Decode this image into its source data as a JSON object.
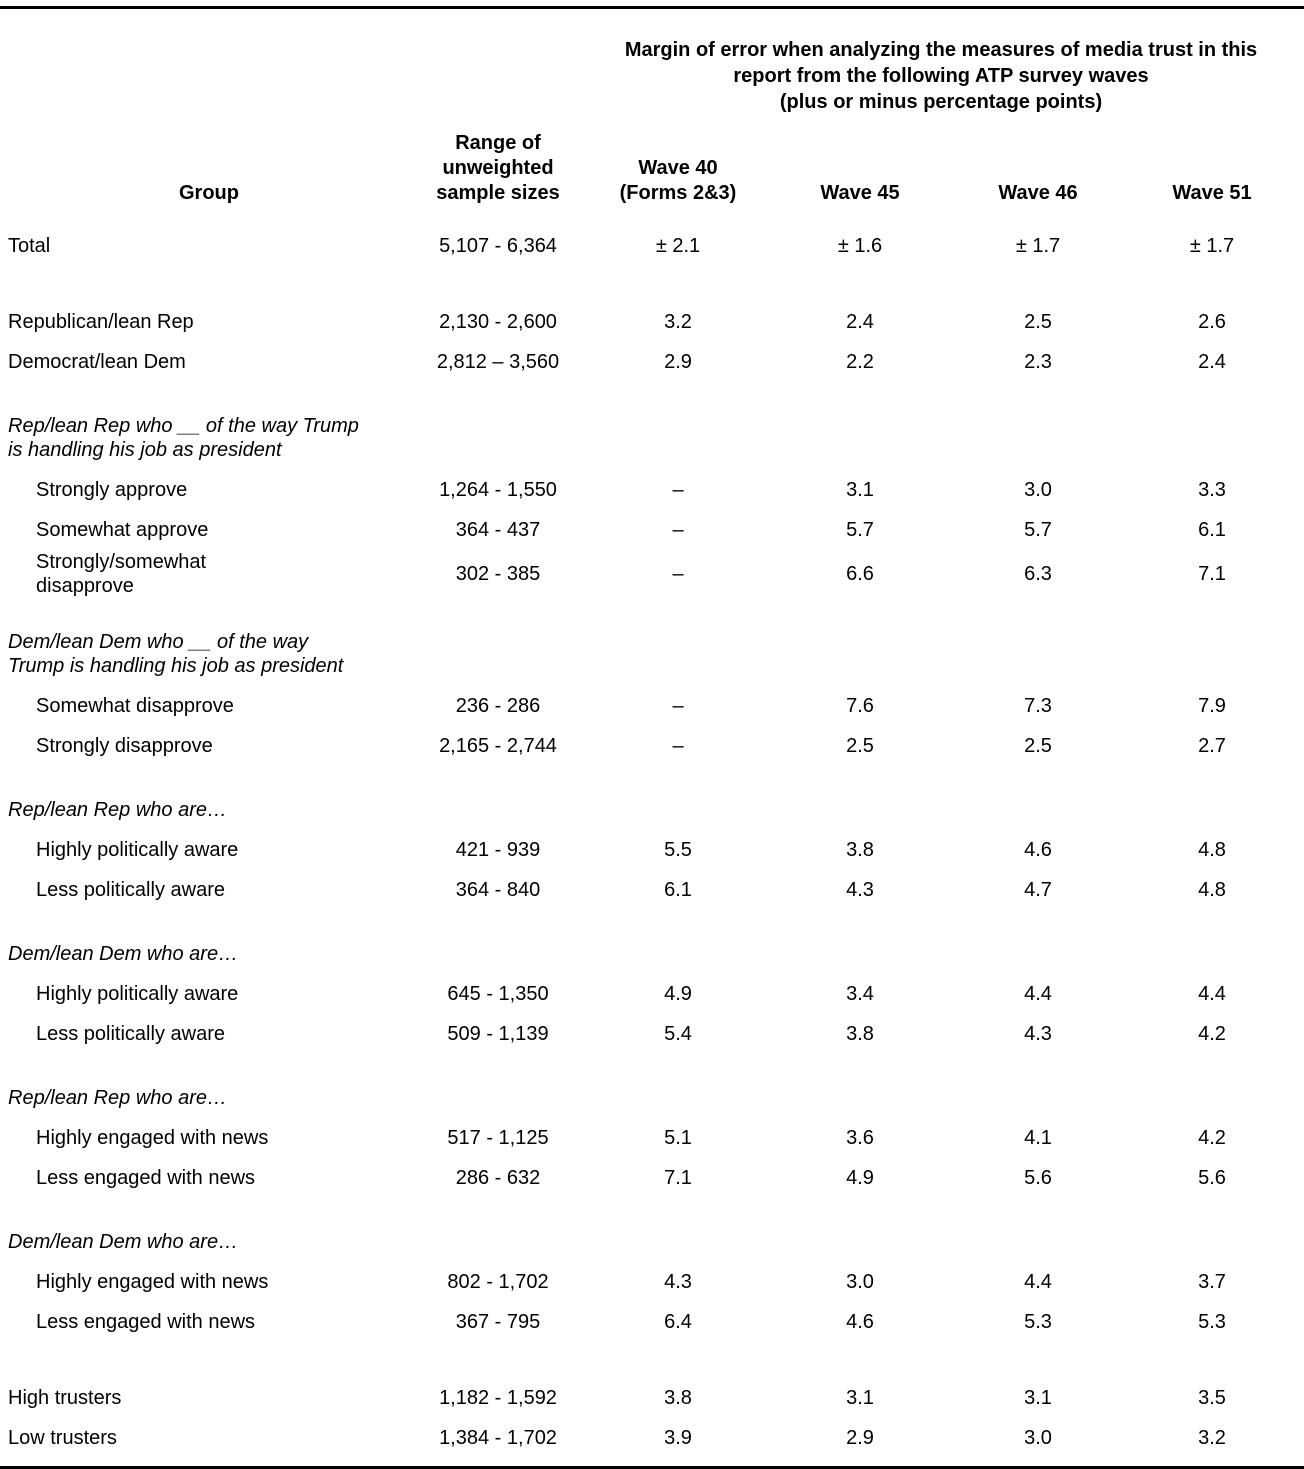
{
  "table": {
    "title": [
      "Margin of error when analyzing the measures of media trust in this",
      "report from the following ATP survey waves",
      "(plus or minus percentage points)"
    ],
    "columns": {
      "group": "Group",
      "cols": [
        "Range of\nunweighted\nsample sizes",
        "Wave 40\n(Forms 2&3)",
        "Wave 45",
        "Wave 46",
        "Wave 51"
      ]
    },
    "rows": [
      {
        "type": "data",
        "label": "Total",
        "values": [
          "5,107 - 6,364",
          "± 2.1",
          "± 1.6",
          "± 1.7",
          "± 1.7"
        ]
      },
      {
        "type": "spacer"
      },
      {
        "type": "data",
        "label": "Republican/lean Rep",
        "values": [
          "2,130 - 2,600",
          "3.2",
          "2.4",
          "2.5",
          "2.6"
        ]
      },
      {
        "type": "data",
        "label": "Democrat/lean Dem",
        "values": [
          "2,812 – 3,560",
          "2.9",
          "2.2",
          "2.3",
          "2.4"
        ]
      },
      {
        "type": "section",
        "label": "Rep/lean Rep who __ of the way Trump\nis handling his job as president"
      },
      {
        "type": "data",
        "indent": true,
        "label": "Strongly approve",
        "values": [
          "1,264 - 1,550",
          "–",
          "3.1",
          "3.0",
          "3.3"
        ]
      },
      {
        "type": "data",
        "indent": true,
        "label": "Somewhat approve",
        "values": [
          "364 - 437",
          "–",
          "5.7",
          "5.7",
          "6.1"
        ]
      },
      {
        "type": "data",
        "indent": true,
        "label": "Strongly/somewhat\ndisapprove",
        "values": [
          "302 - 385",
          "–",
          "6.6",
          "6.3",
          "7.1"
        ]
      },
      {
        "type": "section",
        "label": "Dem/lean Dem who __ of the way\nTrump is handling his job as president"
      },
      {
        "type": "data",
        "indent": true,
        "label": "Somewhat disapprove",
        "values": [
          "236 - 286",
          "–",
          "7.6",
          "7.3",
          "7.9"
        ]
      },
      {
        "type": "data",
        "indent": true,
        "label": "Strongly disapprove",
        "values": [
          "2,165 - 2,744",
          "–",
          "2.5",
          "2.5",
          "2.7"
        ]
      },
      {
        "type": "section",
        "label": "Rep/lean Rep who are…"
      },
      {
        "type": "data",
        "indent": true,
        "label": "Highly politically aware",
        "values": [
          "421 - 939",
          "5.5",
          "3.8",
          "4.6",
          "4.8"
        ]
      },
      {
        "type": "data",
        "indent": true,
        "label": "Less politically aware",
        "values": [
          "364 - 840",
          "6.1",
          "4.3",
          "4.7",
          "4.8"
        ]
      },
      {
        "type": "section",
        "label": "Dem/lean Dem who are…"
      },
      {
        "type": "data",
        "indent": true,
        "label": "Highly politically aware",
        "values": [
          "645 - 1,350",
          "4.9",
          "3.4",
          "4.4",
          "4.4"
        ]
      },
      {
        "type": "data",
        "indent": true,
        "label": "Less politically aware",
        "values": [
          "509 - 1,139",
          "5.4",
          "3.8",
          "4.3",
          "4.2"
        ]
      },
      {
        "type": "section",
        "label": "Rep/lean Rep who are…"
      },
      {
        "type": "data",
        "indent": true,
        "label": "Highly engaged with news",
        "values": [
          "517 - 1,125",
          "5.1",
          "3.6",
          "4.1",
          "4.2"
        ]
      },
      {
        "type": "data",
        "indent": true,
        "label": "Less engaged with news",
        "values": [
          "286 - 632",
          "7.1",
          "4.9",
          "5.6",
          "5.6"
        ]
      },
      {
        "type": "section",
        "label": "Dem/lean Dem who are…"
      },
      {
        "type": "data",
        "indent": true,
        "label": "Highly engaged with news",
        "values": [
          "802 - 1,702",
          "4.3",
          "3.0",
          "4.4",
          "3.7"
        ]
      },
      {
        "type": "data",
        "indent": true,
        "label": "Less engaged with news",
        "values": [
          "367 - 795",
          "6.4",
          "4.6",
          "5.3",
          "5.3"
        ]
      },
      {
        "type": "spacer"
      },
      {
        "type": "data",
        "label": "High trusters",
        "values": [
          "1,182 - 1,592",
          "3.8",
          "3.1",
          "3.1",
          "3.5"
        ]
      },
      {
        "type": "data",
        "label": "Low trusters",
        "values": [
          "1,384 - 1,702",
          "3.9",
          "2.9",
          "3.0",
          "3.2"
        ]
      }
    ]
  }
}
